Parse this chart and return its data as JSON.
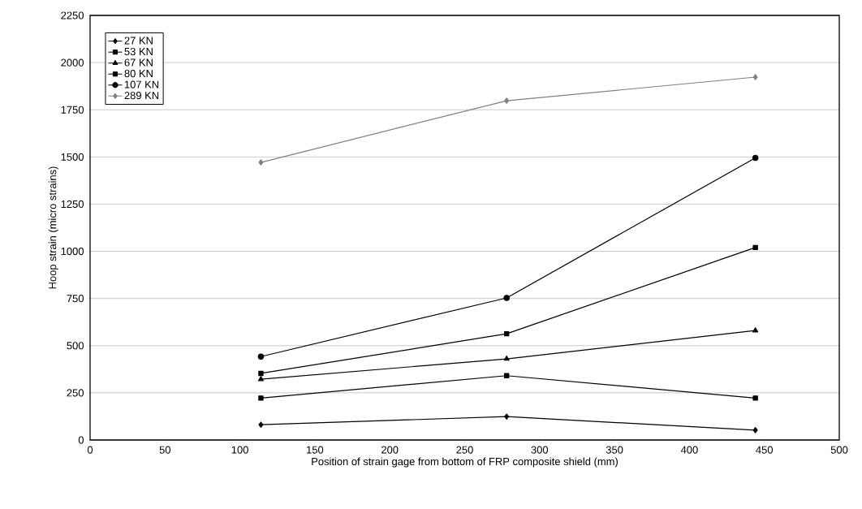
{
  "chart_data": {
    "type": "line",
    "xlabel": "Position of strain gage from bottom of FRP composite shield (mm)",
    "ylabel": "Hoop strain (micro strains)",
    "x": [
      114,
      278,
      444
    ],
    "series": [
      {
        "name": "27 KN",
        "color": "#000000",
        "marker": "diamond",
        "values": [
          81,
          124,
          52
        ]
      },
      {
        "name": "53 KN",
        "color": "#000000",
        "marker": "square",
        "values": [
          222,
          341,
          222
        ]
      },
      {
        "name": "67 KN",
        "color": "#000000",
        "marker": "triangle",
        "values": [
          322,
          430,
          580
        ]
      },
      {
        "name": "80 KN",
        "color": "#000000",
        "marker": "square",
        "values": [
          353,
          563,
          1020
        ]
      },
      {
        "name": "107 KN",
        "color": "#000000",
        "marker": "circle",
        "values": [
          442,
          753,
          1495
        ]
      },
      {
        "name": "289 KN",
        "color": "#808080",
        "marker": "diamond",
        "values": [
          1471,
          1798,
          1923
        ]
      }
    ],
    "xlim": [
      0,
      500
    ],
    "xticks": [
      0,
      50,
      100,
      150,
      200,
      250,
      300,
      350,
      400,
      450,
      500
    ],
    "ylim": [
      0,
      2250
    ],
    "yticks": [
      0,
      250,
      500,
      750,
      1000,
      1250,
      1500,
      1750,
      2000,
      2250
    ],
    "grid": "y",
    "legend": "top left",
    "line_style": "solid"
  }
}
